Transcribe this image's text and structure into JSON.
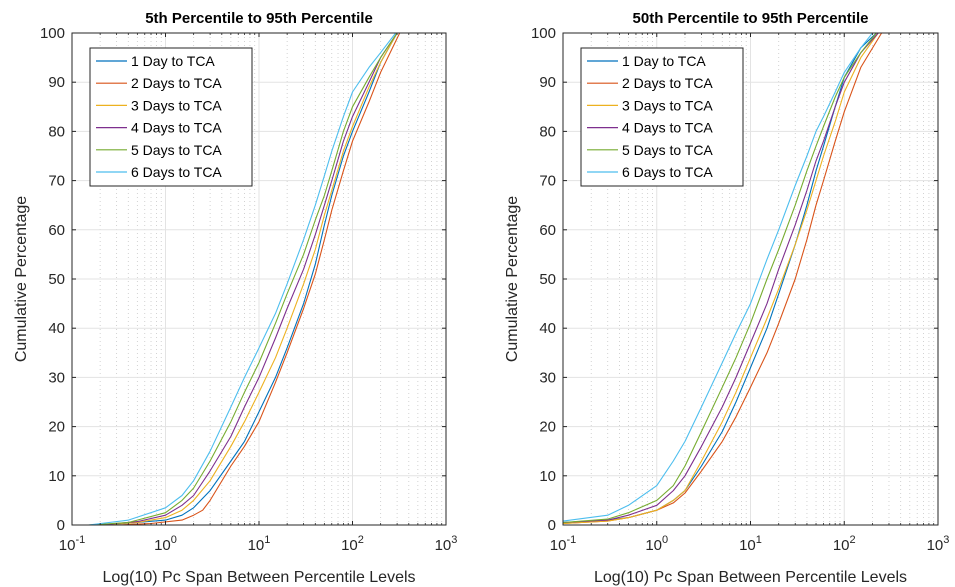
{
  "figure": {
    "colors": [
      "#0072BD",
      "#D95319",
      "#EDB120",
      "#7E2F8E",
      "#77AC30",
      "#4DBEEE"
    ]
  },
  "chart_data": [
    {
      "type": "line",
      "title": "5th Percentile to 95th Percentile",
      "xlabel": "Log(10) Pc Span Between Percentile Levels",
      "ylabel": "Cumulative Percentage",
      "x_scale": "log",
      "xlim": [
        0.1,
        1000
      ],
      "ylim": [
        0,
        100
      ],
      "x_ticks": [
        0.1,
        1,
        10,
        100,
        1000
      ],
      "x_tick_labels": [
        {
          "base": "10",
          "exp": "-1"
        },
        {
          "base": "10",
          "exp": "0"
        },
        {
          "base": "10",
          "exp": "1"
        },
        {
          "base": "10",
          "exp": "2"
        },
        {
          "base": "10",
          "exp": "3"
        }
      ],
      "y_ticks": [
        0,
        10,
        20,
        30,
        40,
        50,
        60,
        70,
        80,
        90,
        100
      ],
      "y_tick_labels": [
        "0",
        "10",
        "20",
        "30",
        "40",
        "50",
        "60",
        "70",
        "80",
        "90",
        "100"
      ],
      "grid": true,
      "legend_position": "top-left",
      "series": [
        {
          "name": "1 Day to TCA",
          "color": "#0072BD",
          "points": [
            [
              0.2,
              0
            ],
            [
              0.5,
              0.5
            ],
            [
              1,
              1
            ],
            [
              1.5,
              2
            ],
            [
              2,
              3.5
            ],
            [
              3,
              7
            ],
            [
              5,
              13
            ],
            [
              7,
              17
            ],
            [
              10,
              23
            ],
            [
              15,
              30
            ],
            [
              20,
              36
            ],
            [
              30,
              45
            ],
            [
              40,
              53
            ],
            [
              50,
              61
            ],
            [
              60,
              67
            ],
            [
              80,
              75
            ],
            [
              100,
              80
            ],
            [
              150,
              88
            ],
            [
              200,
              94
            ],
            [
              300,
              100
            ]
          ]
        },
        {
          "name": "2 Days to TCA",
          "color": "#D95319",
          "points": [
            [
              0.3,
              0
            ],
            [
              0.7,
              0.3
            ],
            [
              1.5,
              1
            ],
            [
              2,
              2
            ],
            [
              2.5,
              3
            ],
            [
              3,
              5
            ],
            [
              5,
              12
            ],
            [
              7,
              16
            ],
            [
              10,
              21
            ],
            [
              15,
              29
            ],
            [
              20,
              35
            ],
            [
              30,
              44
            ],
            [
              40,
              51
            ],
            [
              50,
              58
            ],
            [
              60,
              64
            ],
            [
              80,
              72
            ],
            [
              100,
              78
            ],
            [
              150,
              86
            ],
            [
              200,
              92
            ],
            [
              320,
              100
            ]
          ]
        },
        {
          "name": "3 Days to TCA",
          "color": "#EDB120",
          "points": [
            [
              0.2,
              0
            ],
            [
              0.5,
              0.5
            ],
            [
              1,
              1.5
            ],
            [
              1.5,
              3
            ],
            [
              2,
              5
            ],
            [
              3,
              9
            ],
            [
              5,
              16
            ],
            [
              7,
              21
            ],
            [
              10,
              27
            ],
            [
              15,
              34
            ],
            [
              20,
              40
            ],
            [
              30,
              49
            ],
            [
              40,
              56
            ],
            [
              50,
              63
            ],
            [
              60,
              68
            ],
            [
              80,
              76
            ],
            [
              100,
              81
            ],
            [
              150,
              89
            ],
            [
              200,
              94
            ],
            [
              300,
              100
            ]
          ]
        },
        {
          "name": "4 Days to TCA",
          "color": "#7E2F8E",
          "points": [
            [
              0.2,
              0
            ],
            [
              0.5,
              0.7
            ],
            [
              1,
              2
            ],
            [
              1.5,
              4
            ],
            [
              2,
              6
            ],
            [
              3,
              11
            ],
            [
              5,
              18
            ],
            [
              7,
              24
            ],
            [
              10,
              30
            ],
            [
              15,
              38
            ],
            [
              20,
              44
            ],
            [
              30,
              52
            ],
            [
              40,
              59
            ],
            [
              50,
              65
            ],
            [
              60,
              70
            ],
            [
              80,
              78
            ],
            [
              100,
              83
            ],
            [
              150,
              90
            ],
            [
              200,
              95
            ],
            [
              300,
              100
            ]
          ]
        },
        {
          "name": "5 Days to TCA",
          "color": "#77AC30",
          "points": [
            [
              0.15,
              0
            ],
            [
              0.4,
              0.5
            ],
            [
              1,
              2.5
            ],
            [
              1.5,
              5
            ],
            [
              2,
              7.5
            ],
            [
              3,
              13
            ],
            [
              5,
              21
            ],
            [
              7,
              27
            ],
            [
              10,
              33
            ],
            [
              15,
              41
            ],
            [
              20,
              47
            ],
            [
              30,
              55
            ],
            [
              40,
              62
            ],
            [
              50,
              67
            ],
            [
              60,
              72
            ],
            [
              80,
              80
            ],
            [
              100,
              85
            ],
            [
              150,
              91
            ],
            [
              200,
              95
            ],
            [
              300,
              100
            ]
          ]
        },
        {
          "name": "6 Days to TCA",
          "color": "#4DBEEE",
          "points": [
            [
              0.15,
              0
            ],
            [
              0.4,
              1
            ],
            [
              1,
              3.5
            ],
            [
              1.5,
              6
            ],
            [
              2,
              9
            ],
            [
              3,
              15
            ],
            [
              5,
              24
            ],
            [
              7,
              30
            ],
            [
              10,
              36
            ],
            [
              15,
              43
            ],
            [
              20,
              49
            ],
            [
              30,
              58
            ],
            [
              40,
              65
            ],
            [
              50,
              71
            ],
            [
              60,
              76
            ],
            [
              80,
              83
            ],
            [
              100,
              88
            ],
            [
              150,
              93
            ],
            [
              200,
              96
            ],
            [
              290,
              100
            ]
          ]
        }
      ]
    },
    {
      "type": "line",
      "title": "50th Percentile to 95th Percentile",
      "xlabel": "Log(10) Pc Span Between Percentile Levels",
      "ylabel": "Cumulative Percentage",
      "x_scale": "log",
      "xlim": [
        0.1,
        1000
      ],
      "ylim": [
        0,
        100
      ],
      "x_ticks": [
        0.1,
        1,
        10,
        100,
        1000
      ],
      "x_tick_labels": [
        {
          "base": "10",
          "exp": "-1"
        },
        {
          "base": "10",
          "exp": "0"
        },
        {
          "base": "10",
          "exp": "1"
        },
        {
          "base": "10",
          "exp": "2"
        },
        {
          "base": "10",
          "exp": "3"
        }
      ],
      "y_ticks": [
        0,
        10,
        20,
        30,
        40,
        50,
        60,
        70,
        80,
        90,
        100
      ],
      "y_tick_labels": [
        "0",
        "10",
        "20",
        "30",
        "40",
        "50",
        "60",
        "70",
        "80",
        "90",
        "100"
      ],
      "grid": true,
      "legend_position": "top-left",
      "series": [
        {
          "name": "1 Day to TCA",
          "color": "#0072BD",
          "points": [
            [
              0.1,
              0.5
            ],
            [
              0.3,
              1
            ],
            [
              0.5,
              1.5
            ],
            [
              1,
              3
            ],
            [
              1.5,
              5
            ],
            [
              2,
              7
            ],
            [
              3,
              12
            ],
            [
              5,
              19
            ],
            [
              7,
              25
            ],
            [
              10,
              32
            ],
            [
              15,
              40
            ],
            [
              20,
              47
            ],
            [
              30,
              57
            ],
            [
              40,
              65
            ],
            [
              50,
              72
            ],
            [
              60,
              77
            ],
            [
              80,
              85
            ],
            [
              100,
              91
            ],
            [
              150,
              97
            ],
            [
              220,
              100
            ]
          ]
        },
        {
          "name": "2 Days to TCA",
          "color": "#D95319",
          "points": [
            [
              0.1,
              0.3
            ],
            [
              0.3,
              0.8
            ],
            [
              0.5,
              1.5
            ],
            [
              1,
              3
            ],
            [
              1.5,
              4.5
            ],
            [
              2,
              6.5
            ],
            [
              3,
              11
            ],
            [
              5,
              17
            ],
            [
              7,
              22
            ],
            [
              10,
              28
            ],
            [
              15,
              35
            ],
            [
              20,
              41
            ],
            [
              30,
              50
            ],
            [
              40,
              58
            ],
            [
              50,
              65
            ],
            [
              60,
              70
            ],
            [
              80,
              78
            ],
            [
              100,
              84
            ],
            [
              150,
              93
            ],
            [
              250,
              100
            ]
          ]
        },
        {
          "name": "3 Days to TCA",
          "color": "#EDB120",
          "points": [
            [
              0.1,
              0.3
            ],
            [
              0.3,
              0.8
            ],
            [
              0.5,
              1.5
            ],
            [
              1,
              3
            ],
            [
              1.5,
              5
            ],
            [
              2,
              7
            ],
            [
              3,
              13
            ],
            [
              5,
              21
            ],
            [
              7,
              27
            ],
            [
              10,
              34
            ],
            [
              15,
              42
            ],
            [
              20,
              48
            ],
            [
              30,
              57
            ],
            [
              40,
              64
            ],
            [
              50,
              70
            ],
            [
              60,
              75
            ],
            [
              80,
              82
            ],
            [
              100,
              88
            ],
            [
              150,
              95
            ],
            [
              230,
              100
            ]
          ]
        },
        {
          "name": "4 Days to TCA",
          "color": "#7E2F8E",
          "points": [
            [
              0.1,
              0.5
            ],
            [
              0.3,
              1
            ],
            [
              0.5,
              2
            ],
            [
              1,
              4
            ],
            [
              1.5,
              7
            ],
            [
              2,
              10
            ],
            [
              3,
              16
            ],
            [
              5,
              24
            ],
            [
              7,
              30
            ],
            [
              10,
              37
            ],
            [
              15,
              45
            ],
            [
              20,
              52
            ],
            [
              30,
              61
            ],
            [
              40,
              68
            ],
            [
              50,
              74
            ],
            [
              60,
              78
            ],
            [
              80,
              85
            ],
            [
              100,
              90
            ],
            [
              150,
              96
            ],
            [
              230,
              100
            ]
          ]
        },
        {
          "name": "5 Days to TCA",
          "color": "#77AC30",
          "points": [
            [
              0.1,
              0.5
            ],
            [
              0.3,
              1.2
            ],
            [
              0.5,
              2.5
            ],
            [
              1,
              5
            ],
            [
              1.5,
              8
            ],
            [
              2,
              12
            ],
            [
              3,
              19
            ],
            [
              5,
              28
            ],
            [
              7,
              34
            ],
            [
              10,
              41
            ],
            [
              15,
              50
            ],
            [
              20,
              56
            ],
            [
              30,
              65
            ],
            [
              40,
              72
            ],
            [
              50,
              77
            ],
            [
              60,
              81
            ],
            [
              80,
              87
            ],
            [
              100,
              91
            ],
            [
              150,
              96
            ],
            [
              220,
              100
            ]
          ]
        },
        {
          "name": "6 Days to TCA",
          "color": "#4DBEEE",
          "points": [
            [
              0.1,
              0.8
            ],
            [
              0.3,
              2
            ],
            [
              0.5,
              4
            ],
            [
              1,
              8
            ],
            [
              1.5,
              13
            ],
            [
              2,
              17
            ],
            [
              3,
              24
            ],
            [
              5,
              33
            ],
            [
              7,
              39
            ],
            [
              10,
              45
            ],
            [
              15,
              54
            ],
            [
              20,
              60
            ],
            [
              30,
              69
            ],
            [
              40,
              75
            ],
            [
              50,
              80
            ],
            [
              60,
              83
            ],
            [
              80,
              88
            ],
            [
              100,
              92
            ],
            [
              150,
              97
            ],
            [
              200,
              100
            ]
          ]
        }
      ]
    }
  ]
}
